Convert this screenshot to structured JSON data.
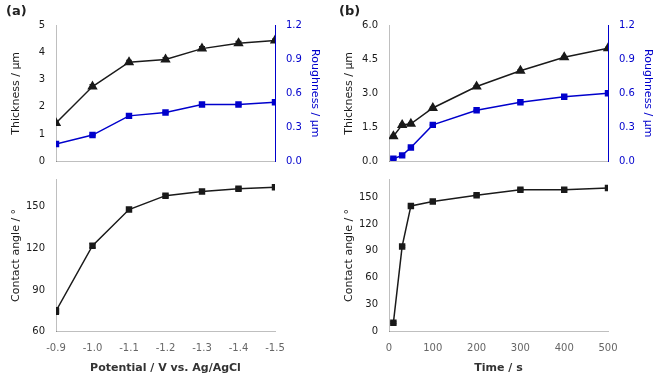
{
  "chart_data": [
    {
      "type": "line",
      "title": "(a)",
      "x": [
        -0.9,
        -1.0,
        -1.1,
        -1.2,
        -1.3,
        -1.4,
        -1.5
      ],
      "xlim": [
        -0.9,
        -1.5
      ],
      "ylabel": "Thickness / μm",
      "y2label": "Roughness / μm",
      "ylim": [
        0,
        5
      ],
      "yticks": [
        0,
        1,
        2,
        3,
        4,
        5
      ],
      "y2lim": [
        0.0,
        1.2
      ],
      "y2ticks": [
        {
          "value": 0.0,
          "label": "0.0"
        },
        0.3,
        0.6,
        0.9,
        1.2
      ],
      "grid": false,
      "tick_labels": "y",
      "series": [
        {
          "color": "#1a1a1a",
          "marker": "triangle",
          "values": [
            1.4,
            2.75,
            3.65,
            3.75,
            4.15,
            4.35,
            4.45
          ],
          "errors": [
            0.05,
            0.07,
            0.07,
            0.07,
            0.07,
            0.07,
            0.05
          ]
        },
        {
          "color": "#0000cc",
          "marker": "square",
          "axis": "y2",
          "values": [
            0.15,
            0.23,
            0.4,
            0.43,
            0.5,
            0.5,
            0.52
          ],
          "errors": [
            0.005,
            0.005,
            0.005,
            0.005,
            0.005,
            0.005,
            0.005
          ]
        }
      ]
    },
    {
      "type": "line",
      "x": [
        -0.9,
        -1.0,
        -1.1,
        -1.2,
        -1.3,
        -1.4,
        -1.5
      ],
      "xlabel": "Potential / V vs. Ag/AgCl",
      "ylabel": "Contact angle / °",
      "xlim": [
        -0.9,
        -1.5
      ],
      "xticks": [
        -0.9,
        {
          "value": -1.0,
          "label": "-1.0"
        },
        -1.1,
        -1.2,
        -1.3,
        -1.4,
        -1.5
      ],
      "ylim": [
        60,
        170
      ],
      "yticks": [
        60,
        90,
        120,
        150
      ],
      "grid": false,
      "series": [
        {
          "color": "#1a1a1a",
          "marker": "square",
          "values": [
            75,
            122,
            148,
            158,
            161,
            163,
            164
          ],
          "errors": [
            2.5,
            1.5,
            1,
            1,
            1,
            1,
            1
          ]
        }
      ]
    },
    {
      "type": "line",
      "title": "(b)",
      "x": [
        10,
        30,
        50,
        100,
        200,
        300,
        400,
        500
      ],
      "xlim": [
        0,
        500
      ],
      "ylabel": "Thickness / μm",
      "y2label": "Roughness / μm",
      "ylim": [
        0,
        6.0
      ],
      "yticks": [
        {
          "value": 0.0,
          "label": "0.0"
        },
        1.5,
        {
          "value": 3.0,
          "label": "3.0"
        },
        4.5,
        {
          "value": 6.0,
          "label": "6.0"
        }
      ],
      "y2lim": [
        0.0,
        1.2
      ],
      "y2ticks": [
        {
          "value": 0.0,
          "label": "0.0"
        },
        0.3,
        0.6,
        0.9,
        1.2
      ],
      "grid": false,
      "tick_labels": "y",
      "series": [
        {
          "color": "#1a1a1a",
          "marker": "triangle",
          "values": [
            1.1,
            1.6,
            1.65,
            2.35,
            3.3,
            4.0,
            4.6,
            5.0
          ],
          "errors": [
            0.04,
            0.04,
            0.04,
            0.04,
            0.04,
            0.04,
            0.04,
            0.04
          ]
        },
        {
          "color": "#0000cc",
          "marker": "square",
          "axis": "y2",
          "values": [
            0.02,
            0.05,
            0.12,
            0.32,
            0.45,
            0.52,
            0.57,
            0.6
          ],
          "errors": [
            0.005,
            0.005,
            0.005,
            0.005,
            0.005,
            0.005,
            0.005,
            0.005
          ]
        }
      ]
    },
    {
      "type": "line",
      "x": [
        10,
        30,
        50,
        100,
        200,
        300,
        400,
        500
      ],
      "xlabel": "Time / s",
      "ylabel": "Contact angle / °",
      "xlim": [
        0,
        500
      ],
      "xticks": [
        0,
        100,
        200,
        300,
        400,
        500
      ],
      "ylim": [
        0,
        170
      ],
      "yticks": [
        0,
        30,
        60,
        90,
        120,
        150
      ],
      "grid": false,
      "series": [
        {
          "color": "#1a1a1a",
          "marker": "square",
          "values": [
            10,
            95,
            140,
            145,
            152,
            158,
            158,
            160
          ],
          "errors": [
            1,
            1,
            1,
            1,
            1,
            1,
            1,
            1
          ]
        }
      ]
    }
  ]
}
